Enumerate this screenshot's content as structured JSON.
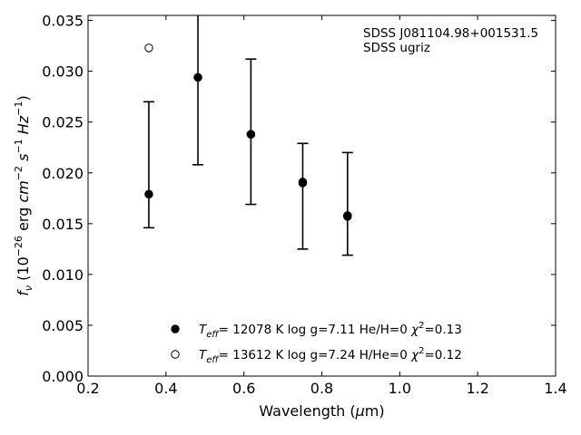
{
  "chart_data": {
    "type": "scatter",
    "title": "",
    "xlabel": "Wavelength (μm)",
    "ylabel": "f_ν (10^-26 erg cm^-2 s^-1 Hz^-1)",
    "xlim": [
      0.2,
      1.4
    ],
    "ylim": [
      0.0,
      0.0355
    ],
    "x_ticks": [
      0.2,
      0.4,
      0.6,
      0.8,
      1.0,
      1.2,
      1.4
    ],
    "x_tick_labels": [
      "0.2",
      "0.4",
      "0.6",
      "0.8",
      "1.0",
      "1.2",
      "1.4"
    ],
    "y_ticks": [
      0.0,
      0.005,
      0.01,
      0.015,
      0.02,
      0.025,
      0.03,
      0.035
    ],
    "y_tick_labels": [
      "0.000",
      "0.005",
      "0.010",
      "0.015",
      "0.020",
      "0.025",
      "0.030",
      "0.035"
    ],
    "grid": false,
    "legend_position": "bottom-center",
    "annotations": [
      "SDSS J081104.98+001531.5",
      "SDSS ugriz"
    ],
    "observed": {
      "x": [
        0.356,
        0.482,
        0.618,
        0.751,
        0.866
      ],
      "y": [
        0.0179,
        0.0294,
        0.0238,
        0.019,
        0.0157
      ],
      "err_low": [
        0.0146,
        0.0208,
        0.0169,
        0.0125,
        0.0119
      ],
      "err_high": [
        0.027,
        0.0362,
        0.0312,
        0.0229,
        0.022
      ]
    },
    "series": [
      {
        "marker": "filled-circle",
        "teff": "12078 K",
        "logg": "log g=7.11",
        "comp": "He/H=0",
        "chi2": "=0.13",
        "x": [
          0.356,
          0.482,
          0.618,
          0.751,
          0.866
        ],
        "y": [
          0.0179,
          0.0294,
          0.0238,
          0.0191,
          0.0158
        ]
      },
      {
        "marker": "open-circle",
        "teff": "13612 K",
        "logg": "log g=7.24",
        "comp": "H/He=0",
        "chi2": "=0.12",
        "x": [
          0.356,
          0.482,
          0.618,
          0.751,
          0.866
        ],
        "y": [
          0.0323,
          0.0294,
          0.0238,
          0.0191,
          0.0158
        ]
      }
    ]
  }
}
